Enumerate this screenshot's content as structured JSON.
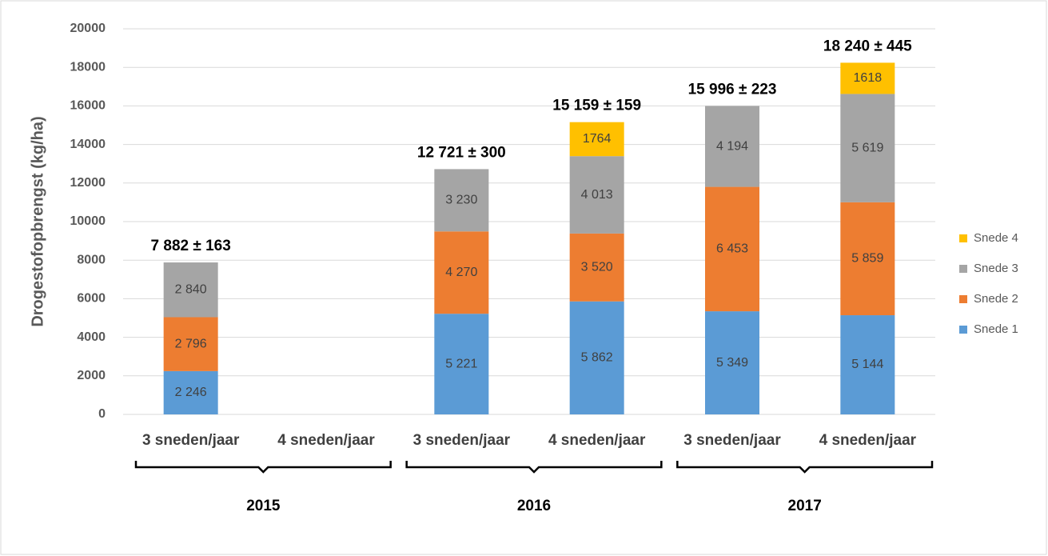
{
  "chart_data": {
    "type": "stacked-bar",
    "y_label": "Drogestofopbrengst (kg/ha)",
    "categories": [
      "3 sneden/jaar",
      "4 sneden/jaar",
      "3 sneden/jaar",
      "4 sneden/jaar",
      "3 sneden/jaar",
      "4 sneden/jaar"
    ],
    "groups": [
      "2015",
      "2016",
      "2017"
    ],
    "series": [
      {
        "name": "Snede 1",
        "color": "#5b9bd5",
        "values": [
          2246,
          null,
          5221,
          5862,
          5349,
          5144
        ],
        "value_labels": [
          "2 246",
          null,
          "5 221",
          "5 862",
          "5 349",
          "5 144"
        ]
      },
      {
        "name": "Snede 2",
        "color": "#ed7d31",
        "values": [
          2796,
          null,
          4270,
          3520,
          6453,
          5859
        ],
        "value_labels": [
          "2 796",
          null,
          "4 270",
          "3 520",
          "6 453",
          "5 859"
        ]
      },
      {
        "name": "Snede 3",
        "color": "#a5a5a5",
        "values": [
          2840,
          null,
          3230,
          4013,
          4194,
          5619
        ],
        "value_labels": [
          "2 840",
          null,
          "3 230",
          "4 013",
          "4 194",
          "5 619"
        ]
      },
      {
        "name": "Snede 4",
        "color": "#ffc000",
        "values": [
          null,
          null,
          null,
          1764,
          null,
          1618
        ]
      }
    ],
    "total_labels": [
      "7 882 ± 163",
      null,
      "12 721 ± 300",
      "15 159 ± 159",
      "15 996 ± 223",
      "18 240 ± 445"
    ],
    "ylim": [
      0,
      20000
    ],
    "yticks": [
      0,
      2000,
      4000,
      6000,
      8000,
      10000,
      12000,
      14000,
      16000,
      18000,
      20000
    ],
    "grid": true,
    "legend": "right"
  }
}
